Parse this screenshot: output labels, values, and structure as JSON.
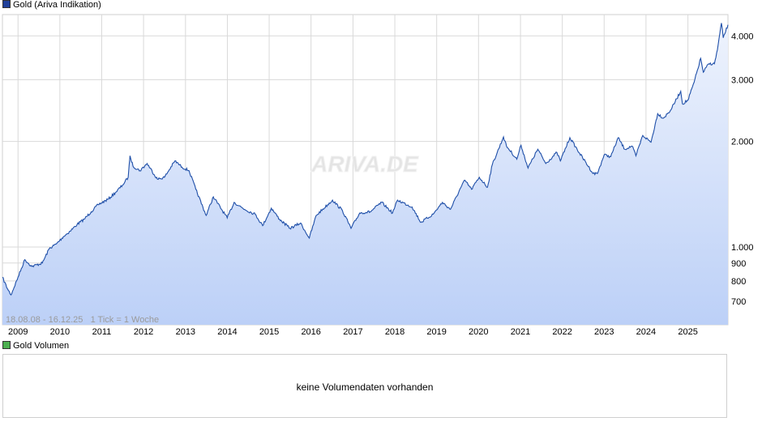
{
  "price_legend": {
    "label": "Gold (Ariva Indikation)",
    "color": "#1f3f99"
  },
  "volume_legend": {
    "label": "Gold Volumen",
    "color": "#4caf50"
  },
  "watermark": "ARIVA.DE",
  "footer_info": "18.08.08 - 16.12.25   1 Tick = 1 Woche",
  "volume_panel": {
    "message": "keine Volumendaten vorhanden"
  },
  "colors": {
    "line": "#1f4fa8",
    "fill_top": "#eef3fd",
    "fill_bottom": "#bcd0f7",
    "grid": "#d9d9d9"
  },
  "chart_data": {
    "type": "area",
    "title": "Gold (Ariva Indikation)",
    "x_range": [
      "2008-08-18",
      "2025-12-16"
    ],
    "y_scale": "log",
    "ylim": [
      600,
      4600
    ],
    "grid": true,
    "x_ticks": [
      "2009",
      "2010",
      "2011",
      "2012",
      "2013",
      "2014",
      "2015",
      "2016",
      "2017",
      "2018",
      "2019",
      "2020",
      "2021",
      "2022",
      "2023",
      "2024",
      "2025"
    ],
    "y_ticks": [
      {
        "value": 700,
        "label": "700"
      },
      {
        "value": 800,
        "label": "800"
      },
      {
        "value": 900,
        "label": "900"
      },
      {
        "value": 1000,
        "label": "1.000"
      },
      {
        "value": 2000,
        "label": "2.000"
      },
      {
        "value": 3000,
        "label": "3.000"
      },
      {
        "value": 4000,
        "label": "4.000"
      }
    ],
    "series": [
      {
        "values": [
          [
            "2008-08-18",
            820
          ],
          [
            "2008-10-01",
            760
          ],
          [
            "2008-11-01",
            730
          ],
          [
            "2009-01-01",
            820
          ],
          [
            "2009-03-01",
            920
          ],
          [
            "2009-05-01",
            880
          ],
          [
            "2009-08-01",
            900
          ],
          [
            "2009-10-01",
            990
          ],
          [
            "2009-12-01",
            1020
          ],
          [
            "2010-02-01",
            1070
          ],
          [
            "2010-04-01",
            1110
          ],
          [
            "2010-06-01",
            1160
          ],
          [
            "2010-08-01",
            1200
          ],
          [
            "2010-10-01",
            1260
          ],
          [
            "2010-12-01",
            1320
          ],
          [
            "2011-03-01",
            1370
          ],
          [
            "2011-05-01",
            1430
          ],
          [
            "2011-07-01",
            1500
          ],
          [
            "2011-08-20",
            1580
          ],
          [
            "2011-09-05",
            1820
          ],
          [
            "2011-10-01",
            1700
          ],
          [
            "2011-12-01",
            1650
          ],
          [
            "2012-02-01",
            1730
          ],
          [
            "2012-05-01",
            1560
          ],
          [
            "2012-07-01",
            1580
          ],
          [
            "2012-10-01",
            1760
          ],
          [
            "2012-12-01",
            1690
          ],
          [
            "2013-02-01",
            1650
          ],
          [
            "2013-04-01",
            1460
          ],
          [
            "2013-06-30",
            1230
          ],
          [
            "2013-09-01",
            1390
          ],
          [
            "2013-12-31",
            1210
          ],
          [
            "2014-03-01",
            1340
          ],
          [
            "2014-06-01",
            1280
          ],
          [
            "2014-09-01",
            1240
          ],
          [
            "2014-11-05",
            1150
          ],
          [
            "2015-01-20",
            1290
          ],
          [
            "2015-04-01",
            1200
          ],
          [
            "2015-07-01",
            1130
          ],
          [
            "2015-10-01",
            1170
          ],
          [
            "2015-12-17",
            1060
          ],
          [
            "2016-02-15",
            1230
          ],
          [
            "2016-07-06",
            1360
          ],
          [
            "2016-10-01",
            1270
          ],
          [
            "2016-12-15",
            1130
          ],
          [
            "2017-03-01",
            1250
          ],
          [
            "2017-06-01",
            1260
          ],
          [
            "2017-09-08",
            1340
          ],
          [
            "2017-12-12",
            1250
          ],
          [
            "2018-01-25",
            1360
          ],
          [
            "2018-06-01",
            1300
          ],
          [
            "2018-08-16",
            1175
          ],
          [
            "2018-12-01",
            1240
          ],
          [
            "2019-02-20",
            1340
          ],
          [
            "2019-05-01",
            1280
          ],
          [
            "2019-08-01",
            1480
          ],
          [
            "2019-09-04",
            1550
          ],
          [
            "2019-11-01",
            1460
          ],
          [
            "2020-01-08",
            1580
          ],
          [
            "2020-03-19",
            1480
          ],
          [
            "2020-05-01",
            1720
          ],
          [
            "2020-08-06",
            2060
          ],
          [
            "2020-09-01",
            1940
          ],
          [
            "2020-11-30",
            1780
          ],
          [
            "2021-01-06",
            1950
          ],
          [
            "2021-03-08",
            1680
          ],
          [
            "2021-06-01",
            1900
          ],
          [
            "2021-08-10",
            1730
          ],
          [
            "2021-11-15",
            1860
          ],
          [
            "2021-12-15",
            1760
          ],
          [
            "2022-03-08",
            2050
          ],
          [
            "2022-06-01",
            1850
          ],
          [
            "2022-09-27",
            1620
          ],
          [
            "2022-11-03",
            1620
          ],
          [
            "2023-01-01",
            1830
          ],
          [
            "2023-02-28",
            1810
          ],
          [
            "2023-05-04",
            2050
          ],
          [
            "2023-06-29",
            1900
          ],
          [
            "2023-09-01",
            1940
          ],
          [
            "2023-10-05",
            1820
          ],
          [
            "2023-12-04",
            2080
          ],
          [
            "2024-02-14",
            1990
          ],
          [
            "2024-04-12",
            2400
          ],
          [
            "2024-06-01",
            2330
          ],
          [
            "2024-08-01",
            2450
          ],
          [
            "2024-10-30",
            2780
          ],
          [
            "2024-11-14",
            2560
          ],
          [
            "2025-01-01",
            2620
          ],
          [
            "2025-02-24",
            2950
          ],
          [
            "2025-04-22",
            3450
          ],
          [
            "2025-05-15",
            3150
          ],
          [
            "2025-07-01",
            3330
          ],
          [
            "2025-08-20",
            3330
          ],
          [
            "2025-09-15",
            3650
          ],
          [
            "2025-10-20",
            4350
          ],
          [
            "2025-11-05",
            3950
          ],
          [
            "2025-12-16",
            4300
          ]
        ]
      }
    ]
  }
}
